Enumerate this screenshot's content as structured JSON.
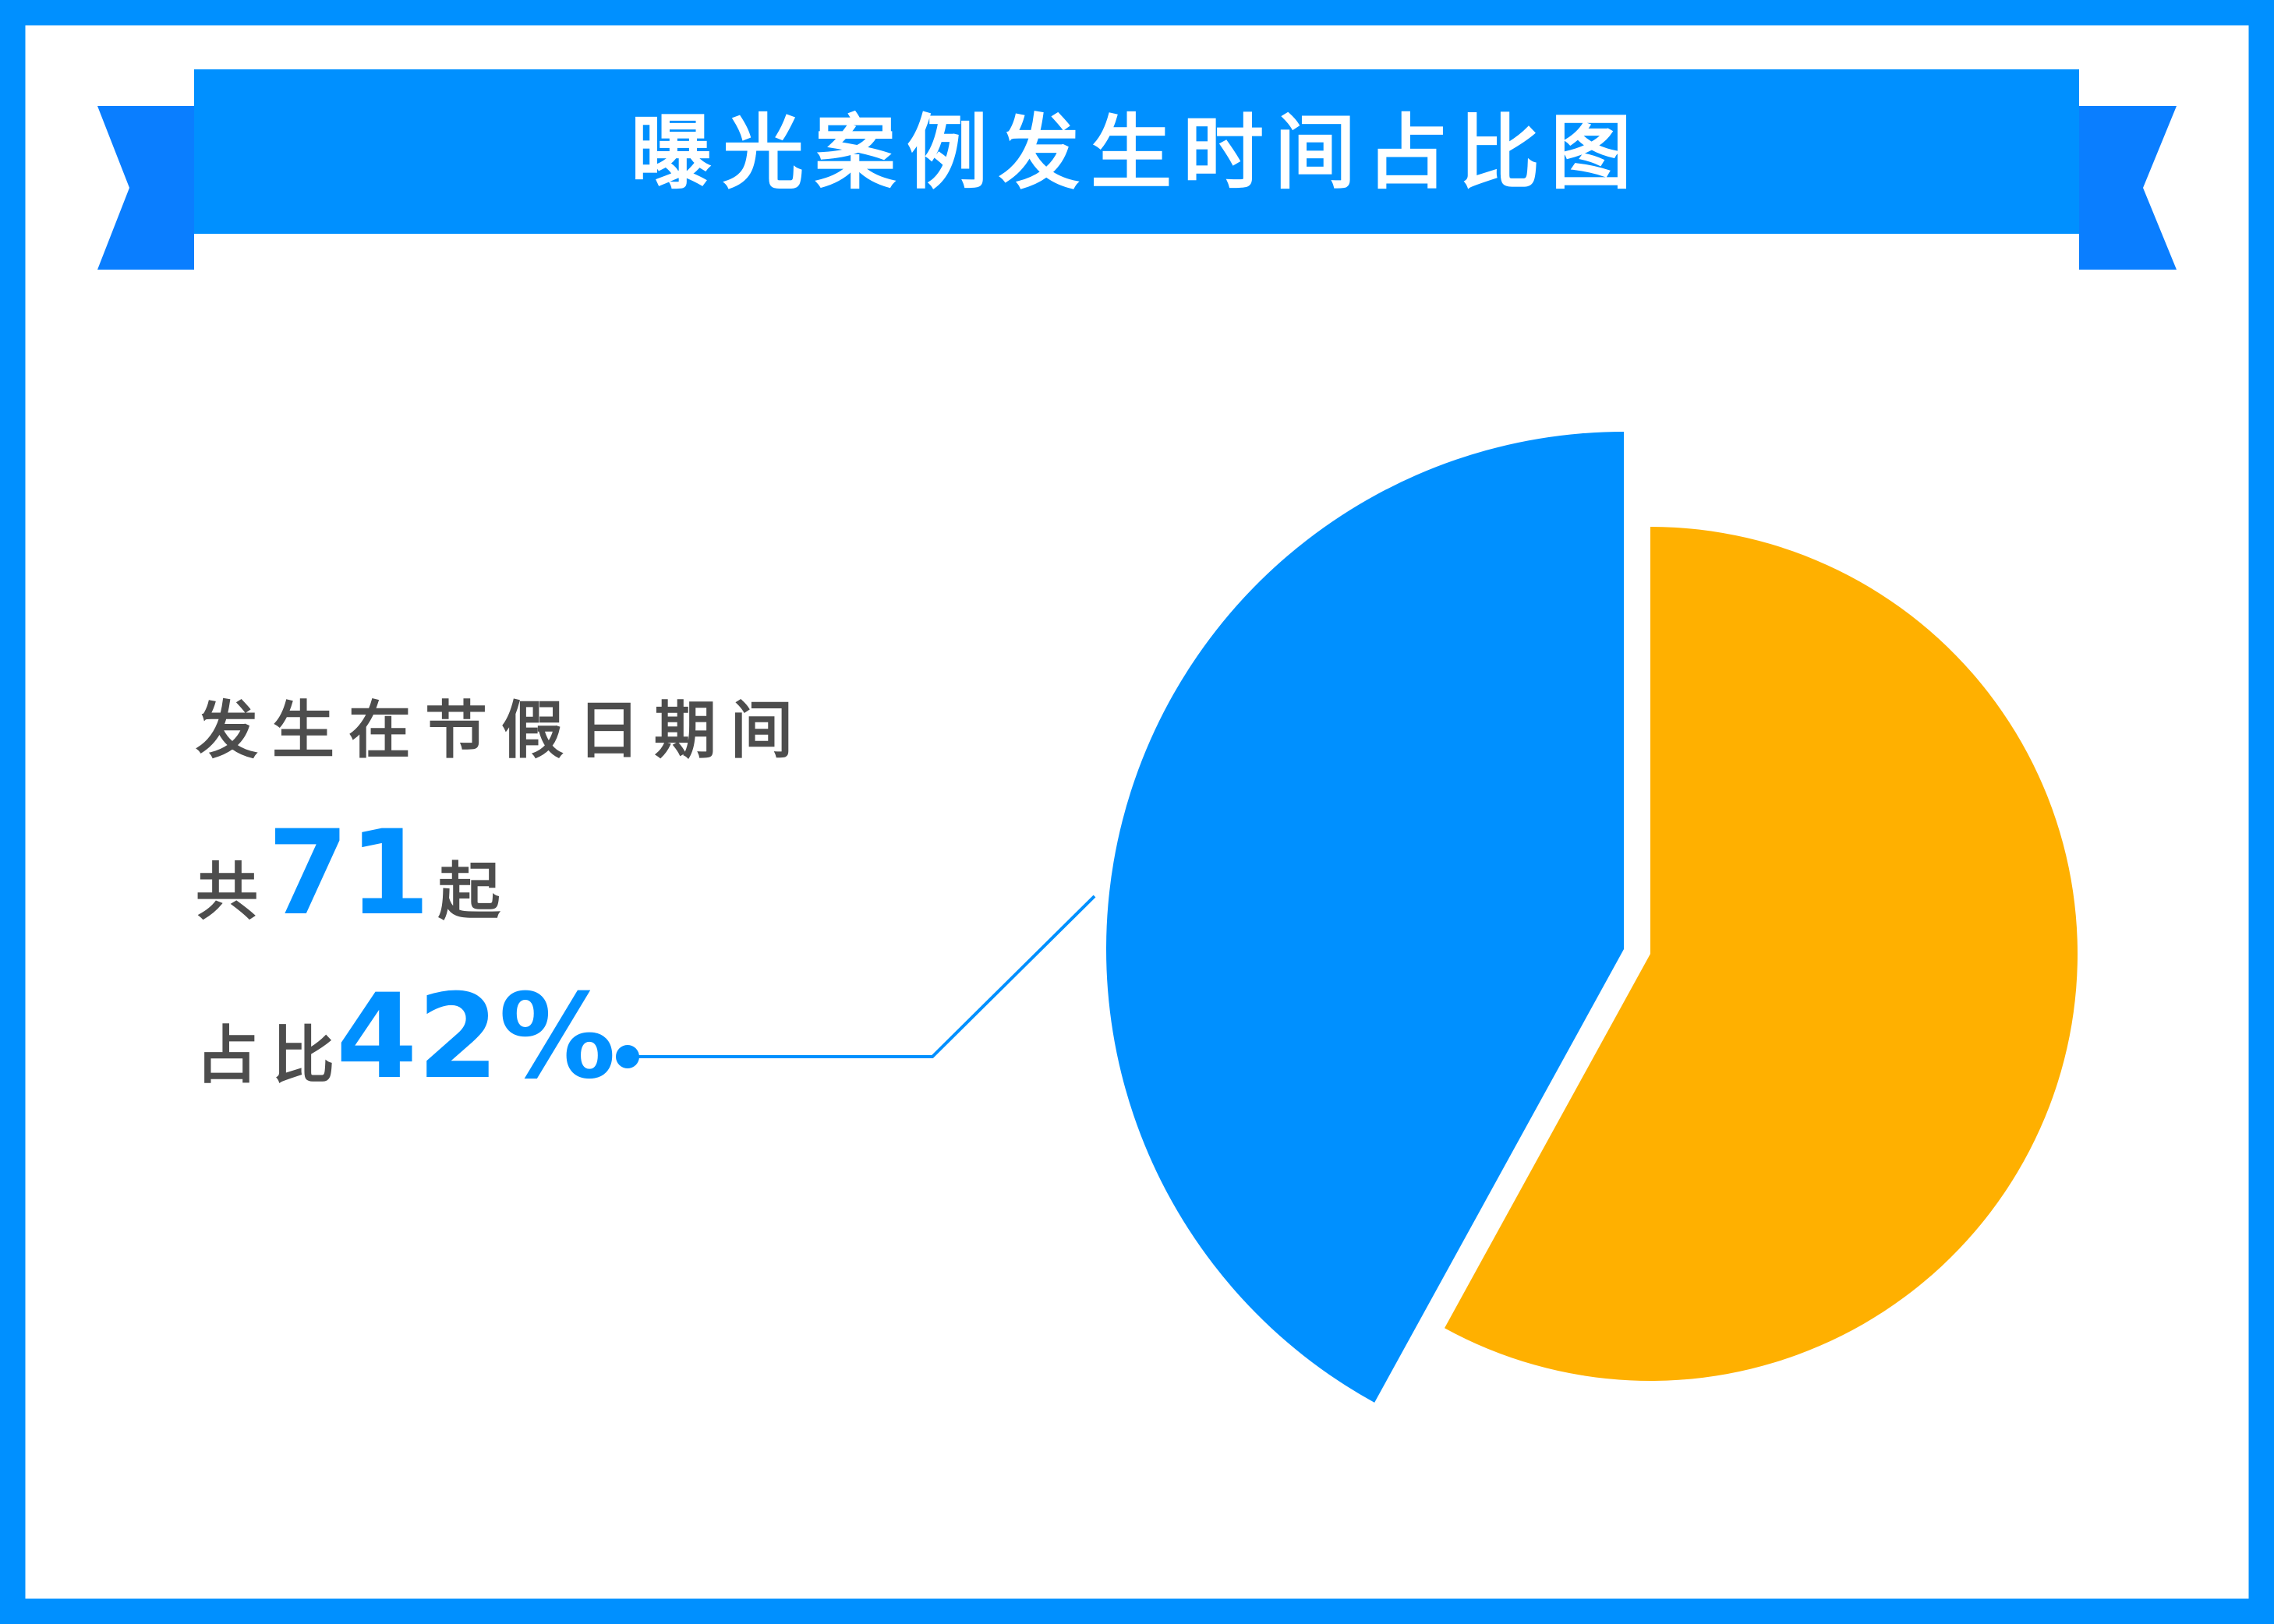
{
  "title": "曝光案例发生时间占比图",
  "callout": {
    "line1": "发生在节假日期间",
    "count_prefix": "共",
    "count_value": "71",
    "count_suffix": "起",
    "share_prefix": "占比",
    "share_value": "42%"
  },
  "colors": {
    "frame": "#0090FF",
    "ribbon_end": "#0A7EFF",
    "text": "#4D4D4D",
    "accent": "#0090FF"
  },
  "chart_data": {
    "type": "pie",
    "title": "曝光案例发生时间占比图",
    "start": "top",
    "legend": "none",
    "slices": [
      {
        "value": 42,
        "count": 71,
        "color": "#0090FF",
        "exploded": true
      },
      {
        "value": 58,
        "color": "#FFB000",
        "exploded": false
      }
    ]
  }
}
